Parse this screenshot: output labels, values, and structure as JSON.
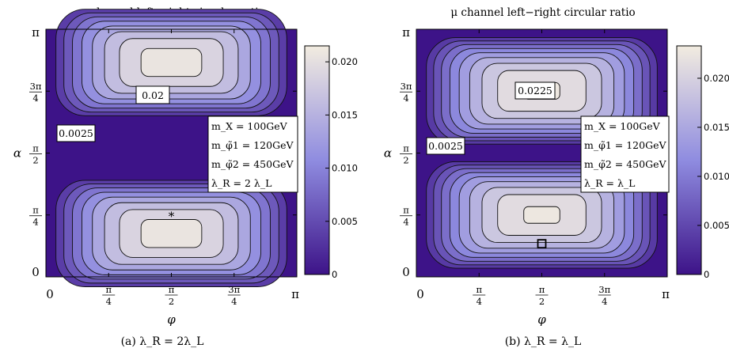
{
  "chart_data": [
    {
      "type": "heatmap",
      "title": "μ channel left−right circular ratio",
      "xlabel": "φ",
      "ylabel": "α",
      "xlim": [
        0,
        3.14159
      ],
      "ylim": [
        0,
        3.14159
      ],
      "x_ticks": [
        {
          "value": 0,
          "label": "0"
        },
        {
          "value": 0.7854,
          "label": "π/4"
        },
        {
          "value": 1.5708,
          "label": "π/2"
        },
        {
          "value": 2.3562,
          "label": "3π/4"
        },
        {
          "value": 3.14159,
          "label": "π"
        }
      ],
      "y_ticks": [
        {
          "value": 0,
          "label": "0"
        },
        {
          "value": 0.7854,
          "label": "π/4"
        },
        {
          "value": 1.5708,
          "label": "π/2"
        },
        {
          "value": 2.3562,
          "label": "3π/4"
        },
        {
          "value": 3.14159,
          "label": "π"
        }
      ],
      "colorbar": {
        "min": 0,
        "max": 0.0215,
        "ticks": [
          "0",
          "0.005",
          "0.010",
          "0.015",
          "0.020"
        ]
      },
      "colors": {
        "low": "#3d1388",
        "mid": "#8f8ce0",
        "high": "#f2ece0"
      },
      "peaks": [
        {
          "phi": 1.5708,
          "alpha": 2.72,
          "value": 0.0213
        },
        {
          "phi": 1.5708,
          "alpha": 0.55,
          "value": 0.0213
        }
      ],
      "contour_levels": [
        0.0025,
        0.005,
        0.0075,
        0.01,
        0.0125,
        0.015,
        0.0175,
        0.02
      ],
      "contour_labels": [
        "0.02",
        "0.0025"
      ],
      "marker": {
        "symbol": "*",
        "phi": 1.5708,
        "alpha": 0.82
      },
      "legend": {
        "lines": [
          "m_X = 100GeV",
          "m_φ̃1 = 120GeV",
          "m_φ̃2 = 450GeV",
          "λ_R = 2 λ_L"
        ],
        "placement": "right"
      },
      "caption": "(a) λ_R = 2λ_L"
    },
    {
      "type": "heatmap",
      "title": "μ channel left−right circular ratio",
      "xlabel": "φ",
      "ylabel": "α",
      "xlim": [
        0,
        3.14159
      ],
      "ylim": [
        0,
        3.14159
      ],
      "x_ticks": [
        {
          "value": 0,
          "label": "0"
        },
        {
          "value": 0.7854,
          "label": "π/4"
        },
        {
          "value": 1.5708,
          "label": "π/2"
        },
        {
          "value": 2.3562,
          "label": "3π/4"
        },
        {
          "value": 3.14159,
          "label": "π"
        }
      ],
      "y_ticks": [
        {
          "value": 0,
          "label": "0"
        },
        {
          "value": 0.7854,
          "label": "π/4"
        },
        {
          "value": 1.5708,
          "label": "π/2"
        },
        {
          "value": 2.3562,
          "label": "3π/4"
        },
        {
          "value": 3.14159,
          "label": "π"
        }
      ],
      "colorbar": {
        "min": 0,
        "max": 0.0233,
        "ticks": [
          "0",
          "0.005",
          "0.010",
          "0.015",
          "0.020"
        ]
      },
      "colors": {
        "low": "#3d1388",
        "mid": "#8f8ce0",
        "high": "#f2ece0"
      },
      "peaks": [
        {
          "phi": 1.5708,
          "alpha": 2.36,
          "value": 0.023
        },
        {
          "phi": 1.5708,
          "alpha": 0.7854,
          "value": 0.023
        }
      ],
      "contour_levels": [
        0.0025,
        0.005,
        0.0075,
        0.01,
        0.0125,
        0.015,
        0.0175,
        0.02,
        0.0225
      ],
      "contour_labels": [
        "0.0225",
        "0.0025"
      ],
      "marker": {
        "symbol": "□",
        "phi": 1.5708,
        "alpha": 0.42
      },
      "legend": {
        "lines": [
          "m_X = 100GeV",
          "m_φ̃1 = 120GeV",
          "m_φ̃2 = 450GeV",
          "λ_R = λ_L"
        ],
        "placement": "right"
      },
      "caption": "(b) λ_R = λ_L"
    }
  ]
}
